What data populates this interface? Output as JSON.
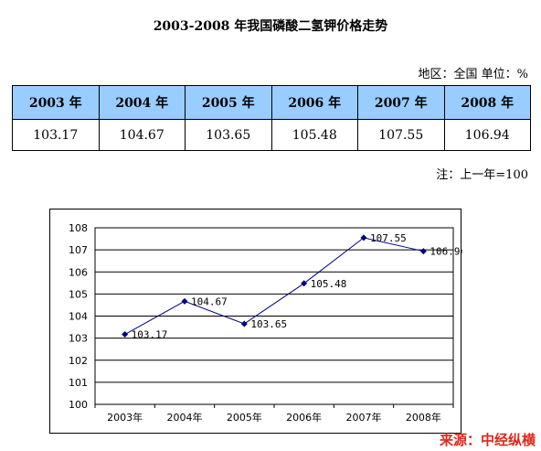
{
  "title": "2003-2008 年我国磷酸二氢钾价格走势",
  "region_unit": "地区：全国  单位：%",
  "table": {
    "headers": [
      "2003 年",
      "2004 年",
      "2005 年",
      "2006 年",
      "2007 年",
      "2008 年"
    ],
    "values": [
      "103.17",
      "104.67",
      "103.65",
      "105.48",
      "107.55",
      "106.94"
    ]
  },
  "note": "注：上一年=100",
  "source": "来源：中经纵横",
  "colors": {
    "header_bg": "#99ccff",
    "line": "#000080",
    "source": "#e0261a"
  },
  "chart_data": {
    "type": "line",
    "categories": [
      "2003年",
      "2004年",
      "2005年",
      "2006年",
      "2007年",
      "2008年"
    ],
    "series": [
      {
        "values": [
          103.17,
          104.67,
          103.65,
          105.48,
          107.55,
          106.94
        ]
      }
    ],
    "data_labels": [
      "103.17",
      "104.67",
      "103.65",
      "105.48",
      "107.55",
      "106.94"
    ],
    "ylim": [
      100,
      108
    ],
    "yticks": [
      "100",
      "101",
      "102",
      "103",
      "104",
      "105",
      "106",
      "107",
      "108"
    ],
    "grid": true,
    "title": "",
    "xlabel": "",
    "ylabel": ""
  }
}
